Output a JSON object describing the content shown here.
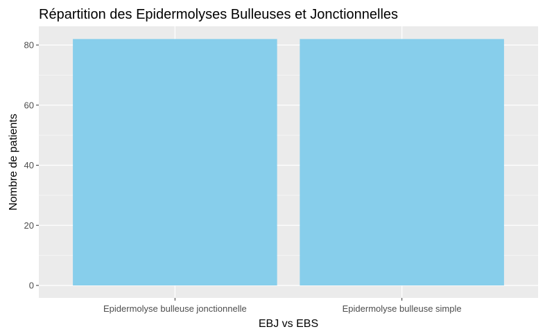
{
  "chart_data": {
    "type": "bar",
    "title": "Répartition des Epidermolyses Bulleuses et Jonctionnelles",
    "xlabel": "EBJ vs EBS",
    "ylabel": "Nombre de patients",
    "categories": [
      "Epidermolyse bulleuse jonctionnelle",
      "Epidermolyse bulleuse simple"
    ],
    "values": [
      82,
      82
    ],
    "ylim": [
      0,
      86
    ],
    "yticks": [
      0,
      20,
      40,
      60,
      80
    ],
    "grid": true,
    "legend": "none",
    "colors": {
      "bar": "#87CEEB",
      "panel": "#EBEBEB",
      "grid_major": "#FFFFFF",
      "tick": "#333333"
    }
  }
}
